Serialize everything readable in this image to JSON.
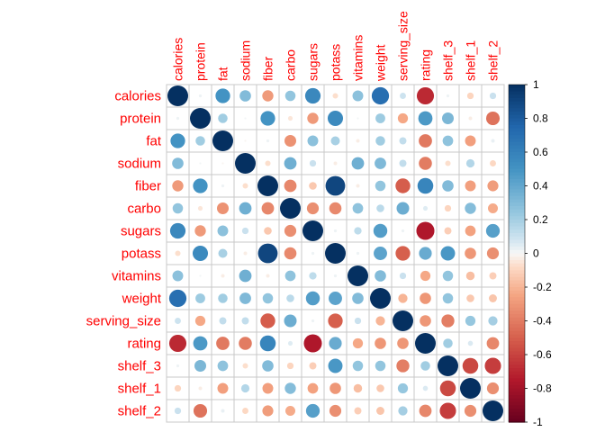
{
  "chart_data": {
    "type": "heatmap",
    "subtype": "correlation-matrix-circles",
    "title": "",
    "variables": [
      "calories",
      "protein",
      "fat",
      "sodium",
      "fiber",
      "carbo",
      "sugars",
      "potass",
      "vitamins",
      "weight",
      "serving_size",
      "rating",
      "shelf_3",
      "shelf_1",
      "shelf_2"
    ],
    "matrix": [
      [
        1.0,
        0.02,
        0.5,
        0.3,
        -0.29,
        0.25,
        0.56,
        -0.07,
        0.27,
        0.7,
        0.09,
        -0.69,
        0.02,
        -0.1,
        0.1
      ],
      [
        0.02,
        1.0,
        0.21,
        0.01,
        0.5,
        -0.05,
        -0.29,
        0.55,
        0.01,
        0.22,
        -0.24,
        0.47,
        0.32,
        -0.03,
        -0.43
      ],
      [
        0.5,
        0.21,
        1.0,
        -0.01,
        0.02,
        -0.32,
        0.27,
        0.19,
        -0.03,
        0.21,
        0.12,
        -0.41,
        0.26,
        -0.27,
        0.03
      ],
      [
        0.3,
        0.01,
        -0.01,
        1.0,
        -0.07,
        0.36,
        0.1,
        -0.03,
        0.36,
        0.31,
        0.12,
        -0.4,
        -0.07,
        0.16,
        -0.09
      ],
      [
        -0.29,
        0.5,
        0.02,
        -0.07,
        1.0,
        -0.36,
        -0.14,
        0.9,
        -0.03,
        0.25,
        -0.51,
        0.58,
        0.3,
        -0.27,
        -0.28
      ],
      [
        0.25,
        -0.05,
        -0.32,
        0.36,
        -0.36,
        1.0,
        -0.33,
        -0.35,
        0.26,
        0.14,
        0.37,
        0.05,
        -0.1,
        0.29,
        -0.23
      ],
      [
        0.56,
        -0.29,
        0.27,
        0.1,
        -0.14,
        -0.33,
        1.0,
        0.02,
        0.13,
        0.45,
        0.02,
        -0.76,
        -0.12,
        -0.26,
        0.44
      ],
      [
        -0.07,
        0.55,
        0.19,
        -0.03,
        0.9,
        -0.35,
        0.02,
        1.0,
        0.02,
        0.42,
        -0.5,
        0.38,
        0.48,
        -0.3,
        -0.33
      ],
      [
        0.27,
        0.01,
        -0.03,
        0.36,
        -0.03,
        0.26,
        0.13,
        0.02,
        1.0,
        0.3,
        0.1,
        -0.24,
        0.25,
        -0.17,
        -0.12
      ],
      [
        0.7,
        0.22,
        0.21,
        0.31,
        0.25,
        0.14,
        0.45,
        0.42,
        0.3,
        1.0,
        -0.2,
        -0.3,
        0.25,
        -0.14,
        -0.15
      ],
      [
        0.09,
        -0.24,
        0.12,
        0.12,
        -0.51,
        0.37,
        0.02,
        -0.5,
        0.1,
        -0.2,
        1.0,
        -0.3,
        -0.39,
        0.24,
        0.2
      ],
      [
        -0.69,
        0.47,
        -0.41,
        -0.4,
        0.58,
        0.05,
        -0.76,
        0.38,
        -0.24,
        -0.3,
        -0.3,
        1.0,
        0.21,
        0.06,
        -0.36
      ],
      [
        0.02,
        0.32,
        0.26,
        -0.07,
        0.3,
        -0.1,
        -0.12,
        0.48,
        0.25,
        0.25,
        -0.39,
        0.21,
        1.0,
        -0.58,
        -0.62
      ],
      [
        -0.1,
        -0.03,
        -0.27,
        0.16,
        -0.27,
        0.29,
        -0.26,
        -0.3,
        -0.17,
        -0.14,
        0.24,
        0.06,
        -0.58,
        1.0,
        -0.33
      ],
      [
        0.1,
        -0.43,
        0.03,
        -0.09,
        -0.28,
        -0.23,
        0.44,
        -0.33,
        -0.12,
        -0.15,
        0.2,
        -0.36,
        -0.62,
        -0.33,
        1.0
      ]
    ],
    "colorbar": {
      "range": [
        -1,
        1
      ],
      "ticks": [
        "-1",
        "-0.8",
        "-0.6",
        "-0.4",
        "-0.2",
        "0",
        "0.2",
        "0.4",
        "0.6",
        "0.8",
        "1"
      ],
      "colors": {
        "neg": "#67001f",
        "mid": "#f7f7f7",
        "pos": "#053061"
      }
    },
    "grid": true,
    "label_color": "#ff0000"
  }
}
